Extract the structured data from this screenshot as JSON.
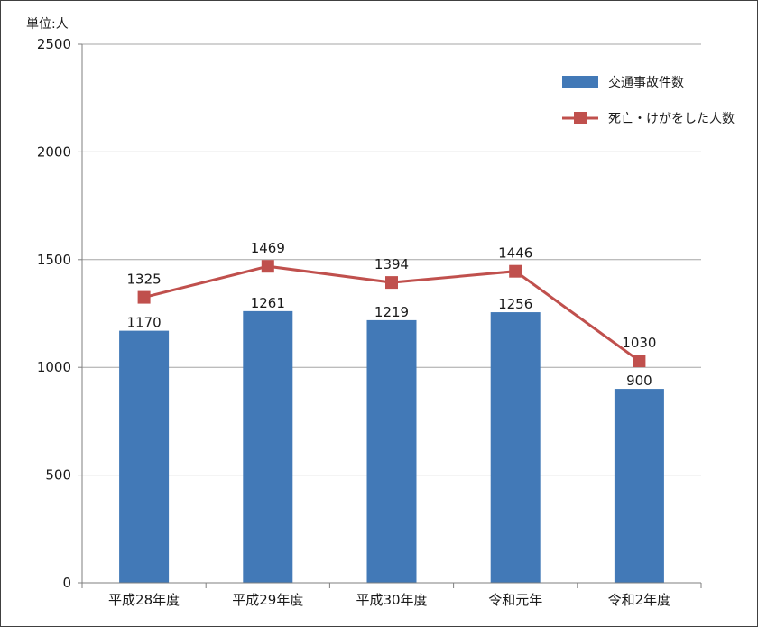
{
  "chart_data": {
    "type": "bar",
    "unit_label": "単位:人",
    "categories": [
      "平成28年度",
      "平成29年度",
      "平成30年度",
      "令和元年",
      "令和2年度"
    ],
    "series": [
      {
        "name": "交通事故件数",
        "type": "bar",
        "color": "#4279b7",
        "values": [
          1170,
          1261,
          1219,
          1256,
          900
        ]
      },
      {
        "name": "死亡・けがをした人数",
        "type": "line",
        "marker": "square",
        "color": "#c0504d",
        "values": [
          1325,
          1469,
          1394,
          1446,
          1030
        ]
      }
    ],
    "ylim": [
      0,
      2500
    ],
    "yticks": [
      0,
      500,
      1000,
      1500,
      2000,
      2500
    ],
    "grid": true,
    "legend_position": "top-right",
    "data_labels": true
  }
}
